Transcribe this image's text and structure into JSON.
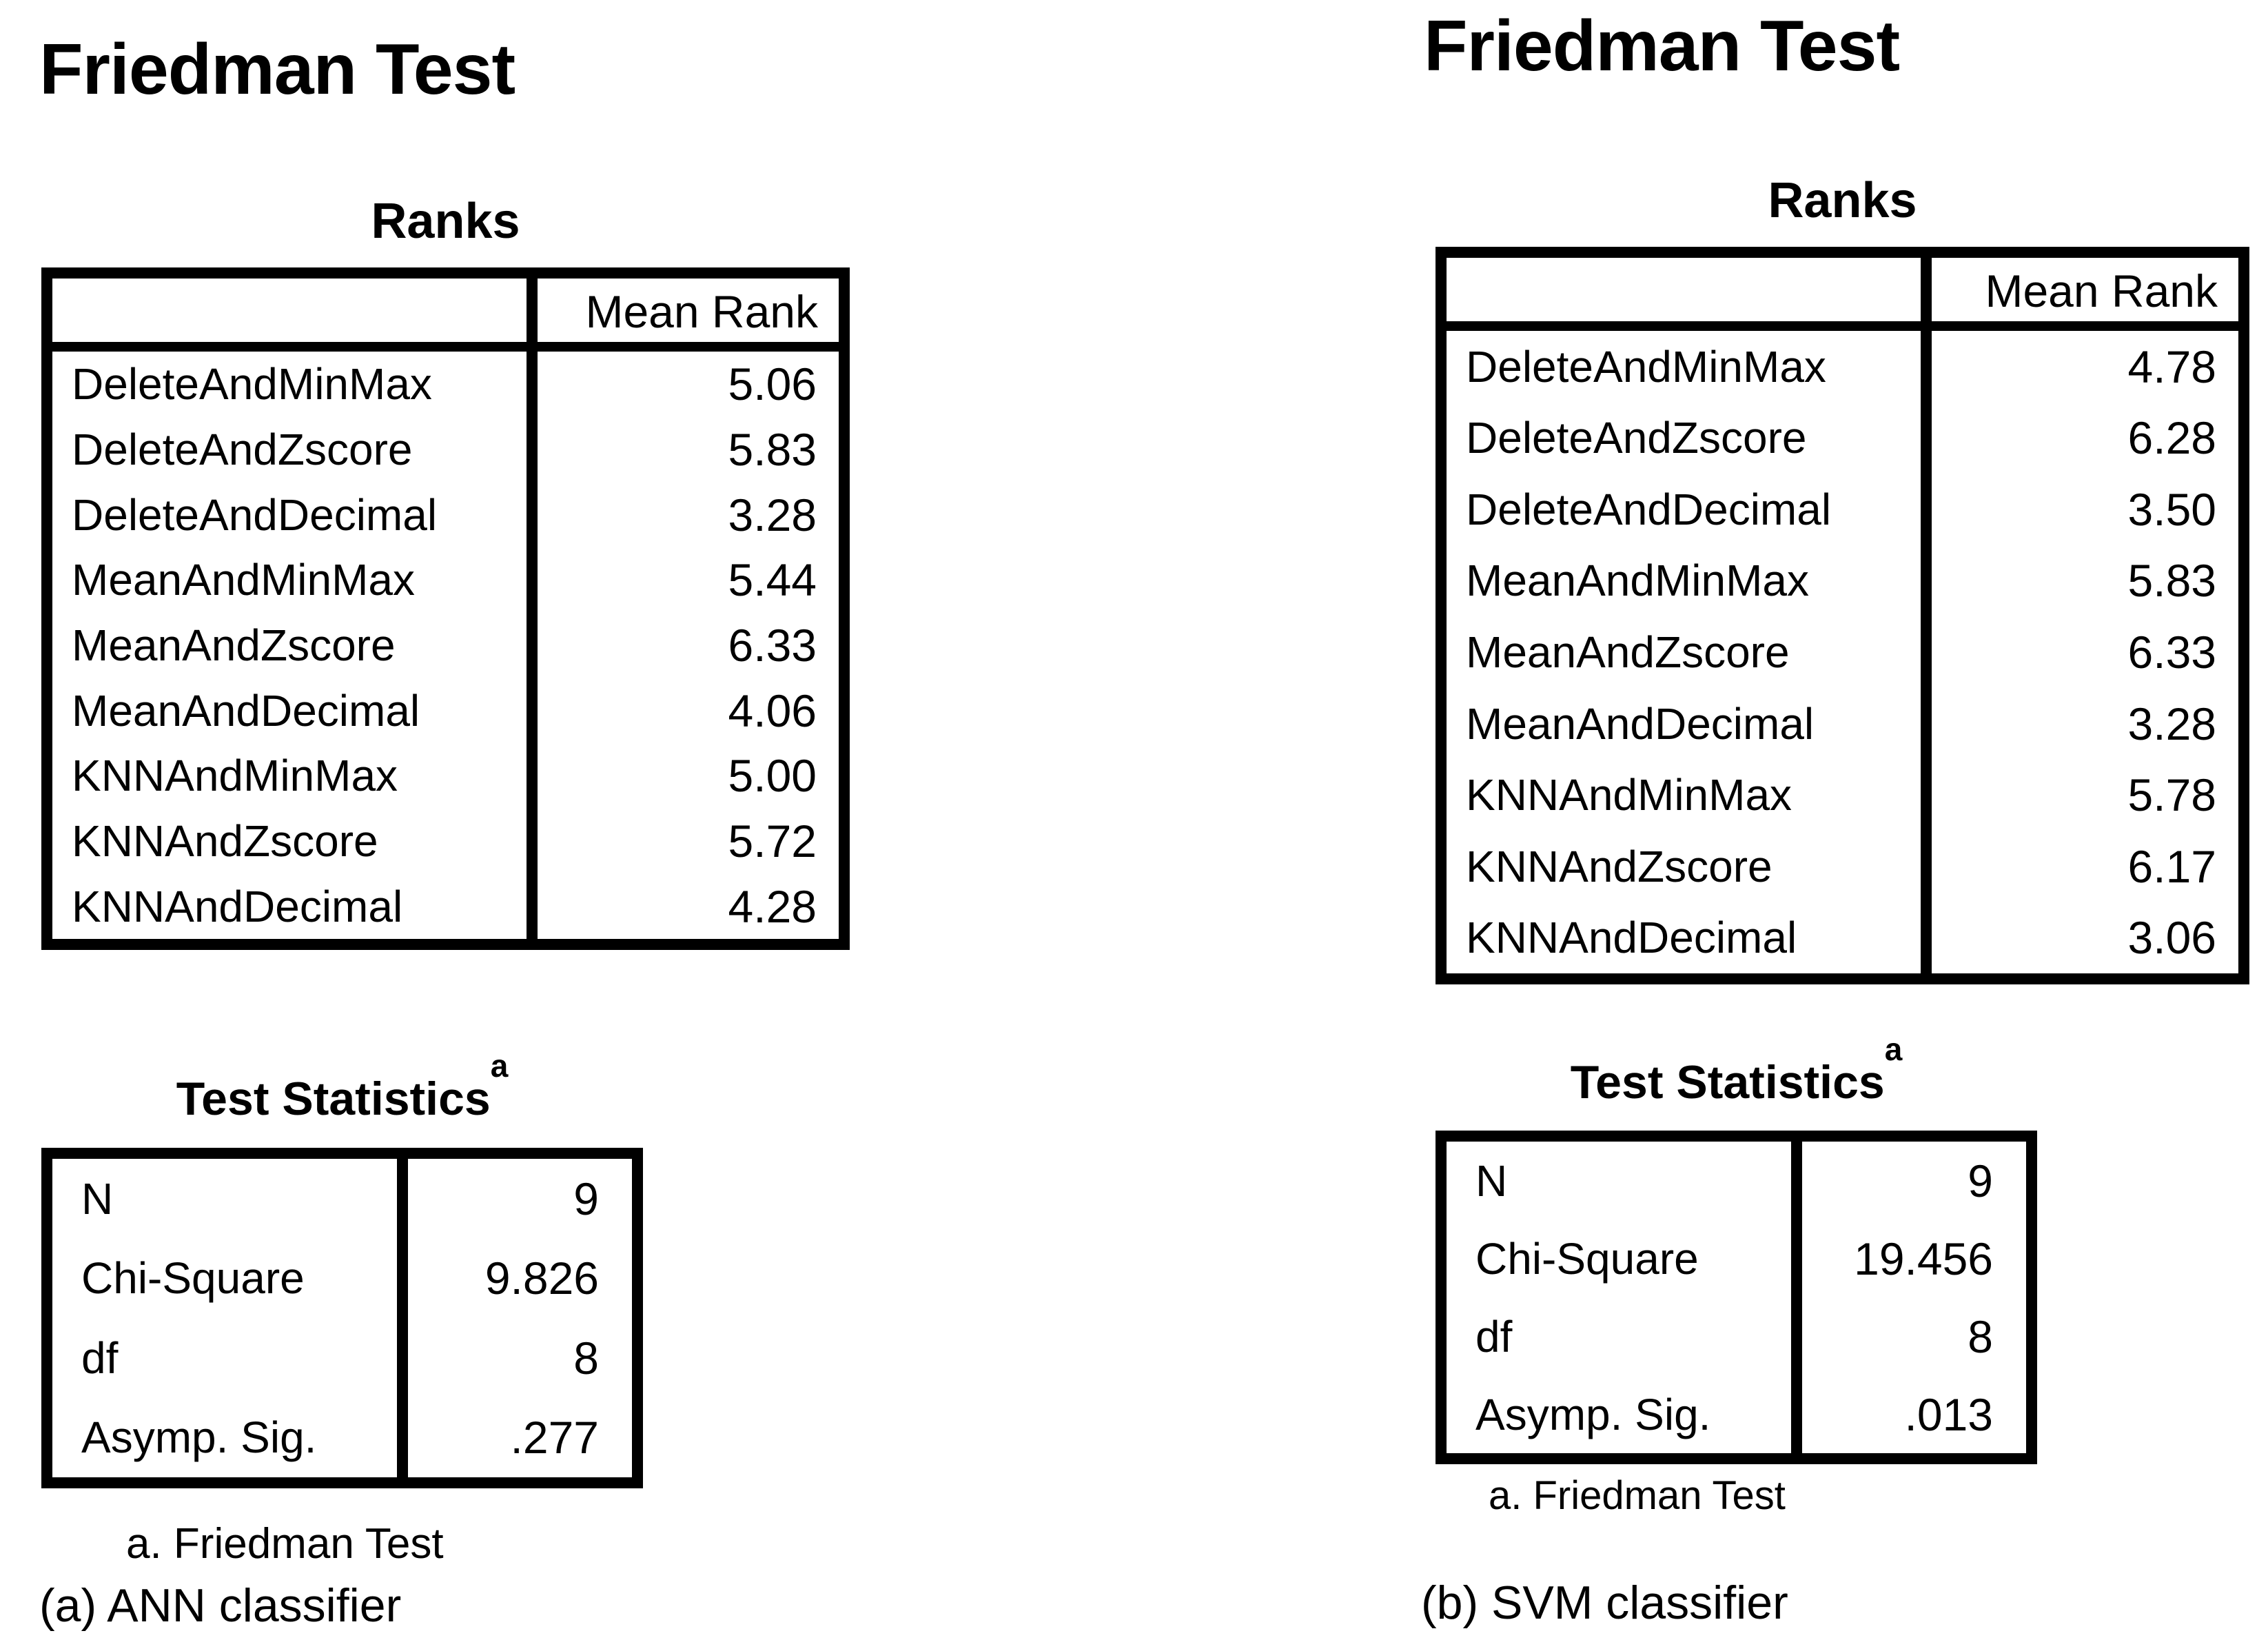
{
  "colors": {
    "background": "#ffffff",
    "text": "#000000",
    "table_border": "#000000"
  },
  "panels": [
    {
      "title": "Friedman Test",
      "ranks_caption": "Ranks",
      "mean_rank_header": "Mean Rank",
      "ranks": [
        {
          "label": "DeleteAndMinMax",
          "value": "5.06"
        },
        {
          "label": "DeleteAndZscore",
          "value": "5.83"
        },
        {
          "label": "DeleteAndDecimal",
          "value": "3.28"
        },
        {
          "label": "MeanAndMinMax",
          "value": "5.44"
        },
        {
          "label": "MeanAndZscore",
          "value": "6.33"
        },
        {
          "label": "MeanAndDecimal",
          "value": "4.06"
        },
        {
          "label": "KNNAndMinMax",
          "value": "5.00"
        },
        {
          "label": "KNNAndZscore",
          "value": "5.72"
        },
        {
          "label": "KNNAndDecimal",
          "value": "4.28"
        }
      ],
      "stats_caption": "Test Statistics",
      "stats_superscript": "a",
      "stats": [
        {
          "label": "N",
          "value": "9"
        },
        {
          "label": "Chi-Square",
          "value": "9.826"
        },
        {
          "label": "df",
          "value": "8"
        },
        {
          "label": "Asymp. Sig.",
          "value": ".277"
        }
      ],
      "footnote": "a. Friedman Test",
      "caption": "(a) ANN classifier"
    },
    {
      "title": "Friedman Test",
      "ranks_caption": "Ranks",
      "mean_rank_header": "Mean Rank",
      "ranks": [
        {
          "label": "DeleteAndMinMax",
          "value": "4.78"
        },
        {
          "label": "DeleteAndZscore",
          "value": "6.28"
        },
        {
          "label": "DeleteAndDecimal",
          "value": "3.50"
        },
        {
          "label": "MeanAndMinMax",
          "value": "5.83"
        },
        {
          "label": "MeanAndZscore",
          "value": "6.33"
        },
        {
          "label": "MeanAndDecimal",
          "value": "3.28"
        },
        {
          "label": "KNNAndMinMax",
          "value": "5.78"
        },
        {
          "label": "KNNAndZscore",
          "value": "6.17"
        },
        {
          "label": "KNNAndDecimal",
          "value": "3.06"
        }
      ],
      "stats_caption": "Test Statistics",
      "stats_superscript": "a",
      "stats": [
        {
          "label": "N",
          "value": "9"
        },
        {
          "label": "Chi-Square",
          "value": "19.456"
        },
        {
          "label": "df",
          "value": "8"
        },
        {
          "label": "Asymp. Sig.",
          "value": ".013"
        }
      ],
      "footnote": "a. Friedman Test",
      "caption": "(b) SVM classifier"
    }
  ]
}
